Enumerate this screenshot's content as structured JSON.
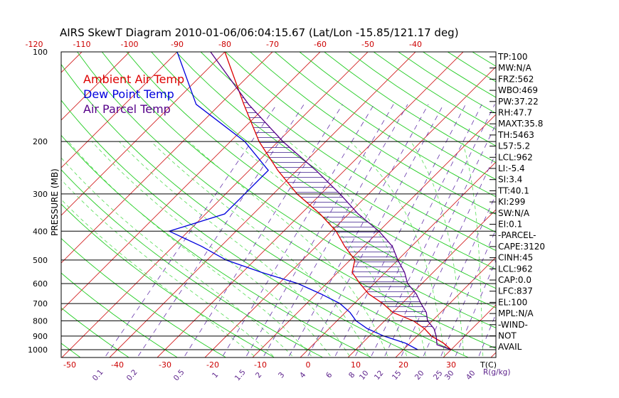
{
  "chart_data": {
    "type": "skew-t",
    "title": "AIRS SkewT Diagram 2010-01-06/06:04:15.67 (Lat/Lon -15.85/121.17 deg)",
    "ylabel": "PRESSURE (MB)",
    "xlabel": "T(C)",
    "mixing_ratio_label": "R(g/kg)",
    "pressure_range": [
      1050,
      100
    ],
    "temperature_range_at_bottom": [
      -55,
      35
    ],
    "pressure_ticks": [
      100,
      200,
      300,
      400,
      500,
      600,
      700,
      800,
      900,
      1000
    ],
    "bottom_temperature_ticks": [
      -50,
      -40,
      -30,
      -20,
      -10,
      0,
      10,
      20,
      30
    ],
    "top_temperature_ticks": [
      -120,
      -110,
      -100,
      -90,
      -80,
      -70,
      -60,
      -50,
      -40
    ],
    "mixing_ratio_ticks": [
      "0.1",
      "0.2",
      "0.5",
      "1",
      "1.5",
      "2",
      "3",
      "4",
      "6",
      "8",
      "10",
      "12",
      "15",
      "20",
      "25",
      "30",
      "40"
    ],
    "legend": [
      {
        "name": "Ambient Air Temp",
        "color": "#dd0000"
      },
      {
        "name": "Dew Point Temp",
        "color": "#0000dd"
      },
      {
        "name": "Air Parcel Temp",
        "color": "#550088"
      }
    ],
    "series": [
      {
        "name": "Ambient Air Temp",
        "color": "#dd0000",
        "points": [
          [
            1000,
            30
          ],
          [
            950,
            27
          ],
          [
            900,
            23
          ],
          [
            850,
            20
          ],
          [
            800,
            16
          ],
          [
            750,
            10
          ],
          [
            700,
            6
          ],
          [
            650,
            1
          ],
          [
            600,
            -3
          ],
          [
            550,
            -7
          ],
          [
            500,
            -9
          ],
          [
            450,
            -14
          ],
          [
            400,
            -19
          ],
          [
            350,
            -26
          ],
          [
            300,
            -35
          ],
          [
            250,
            -44
          ],
          [
            200,
            -54
          ],
          [
            150,
            -65
          ],
          [
            100,
            -80
          ]
        ]
      },
      {
        "name": "Dew Point Temp",
        "color": "#0000dd",
        "points": [
          [
            1000,
            23
          ],
          [
            950,
            19
          ],
          [
            900,
            13
          ],
          [
            850,
            8
          ],
          [
            800,
            4
          ],
          [
            750,
            1
          ],
          [
            700,
            -3
          ],
          [
            650,
            -9
          ],
          [
            600,
            -16
          ],
          [
            550,
            -26
          ],
          [
            500,
            -36
          ],
          [
            450,
            -44
          ],
          [
            400,
            -54
          ],
          [
            350,
            -46
          ],
          [
            300,
            -46
          ],
          [
            250,
            -46
          ],
          [
            200,
            -57
          ],
          [
            150,
            -75
          ],
          [
            100,
            -90
          ]
        ]
      },
      {
        "name": "Air Parcel Temp",
        "color": "#550088",
        "points": [
          [
            1000,
            30
          ],
          [
            962,
            26
          ],
          [
            900,
            24
          ],
          [
            850,
            22
          ],
          [
            800,
            19
          ],
          [
            750,
            17
          ],
          [
            700,
            14
          ],
          [
            650,
            11
          ],
          [
            600,
            7
          ],
          [
            550,
            4
          ],
          [
            500,
            0
          ],
          [
            450,
            -4
          ],
          [
            400,
            -10
          ],
          [
            350,
            -18
          ],
          [
            300,
            -26
          ],
          [
            250,
            -36
          ],
          [
            200,
            -49
          ],
          [
            150,
            -64
          ],
          [
            100,
            -83
          ]
        ]
      }
    ],
    "grid": true
  },
  "stats": [
    "TP:100",
    "MW:N/A",
    "FRZ:562",
    "WBO:469",
    "PW:37.22",
    "RH:47.7",
    "MAXT:35.8",
    "TH:5463",
    "L57:5.2",
    "LCL:962",
    "LI:-5.4",
    "SI:3.4",
    "TT:40.1",
    "KI:299",
    "SW:N/A",
    "EI:0.1",
    "-PARCEL-",
    "CAPE:3120",
    "CINH:45",
    "LCL:962",
    "CAP:0.0",
    "LFC:837",
    "EL:100",
    "MPL:N/A",
    "-WIND-",
    "NOT",
    "AVAIL"
  ],
  "colors": {
    "isotherm": "#d32222",
    "dry_adiabat": "#22cc22",
    "moist_adiabat": "#55dd55",
    "mixing_ratio": "#6633aa",
    "isobar": "#000000",
    "hatch": "#3a1a8a"
  }
}
